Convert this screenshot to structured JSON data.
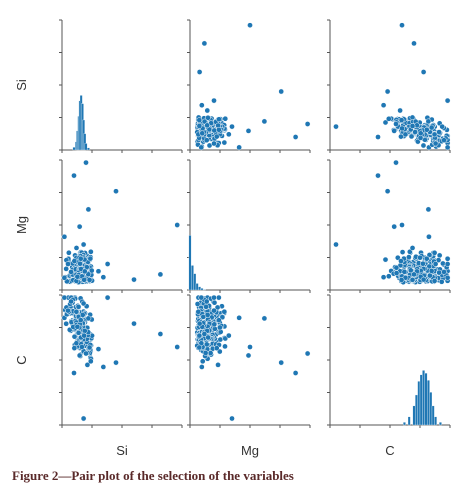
{
  "figure": {
    "caption": "Figure 2—Pair plot of the selection of the variables"
  },
  "colors": {
    "points": "#1f77b4",
    "axes": "#555555"
  },
  "chart_data": {
    "type": "scatter",
    "kind": "pair-plot",
    "title": "",
    "variables": [
      "Si",
      "Mg",
      "C"
    ],
    "diagonal": "histogram",
    "grid": false,
    "legend": "none",
    "axis_ticks_labeled": false,
    "ranges": {
      "Si": [
        0.0,
        1.0
      ],
      "Mg": [
        0.0,
        1.0
      ],
      "C": [
        0.0,
        1.0
      ]
    },
    "histograms": {
      "Si": {
        "x": [
          0.1,
          0.12,
          0.13,
          0.14,
          0.15,
          0.16,
          0.17,
          0.18,
          0.19,
          0.2,
          0.22
        ],
        "density": [
          0.05,
          0.15,
          0.35,
          0.62,
          0.9,
          1.0,
          0.85,
          0.55,
          0.3,
          0.12,
          0.04
        ]
      },
      "Mg": {
        "x": [
          0.0,
          0.02,
          0.04,
          0.06,
          0.08,
          0.1,
          0.12
        ],
        "density": [
          1.0,
          0.45,
          0.3,
          0.12,
          0.06,
          0.03,
          0.01
        ]
      },
      "C": {
        "x": [
          0.62,
          0.66,
          0.7,
          0.72,
          0.74,
          0.76,
          0.78,
          0.8,
          0.82,
          0.84,
          0.86,
          0.88,
          0.92
        ],
        "density": [
          0.05,
          0.15,
          0.35,
          0.55,
          0.8,
          0.92,
          1.0,
          0.95,
          0.82,
          0.6,
          0.35,
          0.15,
          0.05
        ]
      }
    },
    "outliers": [
      {
        "Si": 0.2,
        "Mg": 0.98,
        "C": 0.55
      },
      {
        "Si": 0.96,
        "Mg": 0.5,
        "C": 0.6
      },
      {
        "Si": 0.45,
        "Mg": 0.76,
        "C": 0.48
      },
      {
        "Si": 0.1,
        "Mg": 0.88,
        "C": 0.4
      },
      {
        "Si": 0.38,
        "Mg": 0.2,
        "C": 0.98
      },
      {
        "Si": 0.22,
        "Mg": 0.62,
        "C": 0.82
      },
      {
        "Si": 0.18,
        "Mg": 0.35,
        "C": 0.05
      },
      {
        "Si": 0.05,
        "Mg": 0.2,
        "C": 0.88
      },
      {
        "Si": 0.82,
        "Mg": 0.12,
        "C": 0.7
      },
      {
        "Si": 0.6,
        "Mg": 0.08,
        "C": 0.78
      }
    ],
    "cluster": {
      "center": {
        "Si": 0.15,
        "Mg": 0.14,
        "C": 0.75
      },
      "spread": {
        "Si": 0.05,
        "Mg": 0.1,
        "C": 0.09
      },
      "n": 260
    }
  }
}
